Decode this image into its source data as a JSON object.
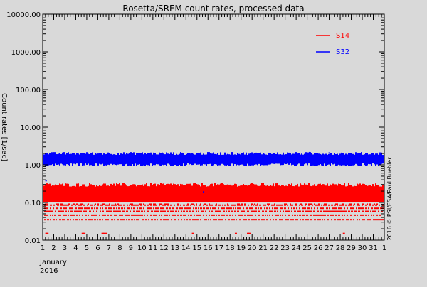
{
  "chart_data": {
    "type": "scatter",
    "title": "Rosetta/SREM count rates, processed data",
    "ylabel": "Count rates [1/sec]",
    "y_scale": "log",
    "ylim": [
      0.01,
      10000
    ],
    "y_ticks": [
      0.01,
      0.1,
      1.0,
      10.0,
      100.0,
      1000.0,
      10000.0
    ],
    "y_tick_labels": [
      "0.01",
      "0.10",
      "1.00",
      "10.00",
      "100.00",
      "1000.00",
      "10000.00"
    ],
    "xlim": [
      1,
      32
    ],
    "x_tick_labels": [
      "1",
      "2",
      "3",
      "4",
      "5",
      "6",
      "7",
      "8",
      "9",
      "10",
      "11",
      "12",
      "13",
      "14",
      "15",
      "16",
      "17",
      "18",
      "19",
      "20",
      "21",
      "22",
      "23",
      "24",
      "25",
      "26",
      "27",
      "28",
      "29",
      "30",
      "31",
      "1"
    ],
    "x_month_label": "January",
    "x_year_label": "2016",
    "grid": false,
    "legend_position": "top-right",
    "credit": "2016 © PSI/ESA/Paul Buehler",
    "colors": {
      "background": "#d9d9d9",
      "axes": "#000000",
      "S14": "#ff0000",
      "S32": "#0000ff"
    },
    "series": [
      {
        "name": "S32",
        "color": "#0000ff",
        "description_level": "dense band",
        "band_center": 1.4,
        "band_low": 1.0,
        "band_high": 2.0,
        "outliers": [
          {
            "x": 1.3,
            "y": 0.38
          },
          {
            "x": 15.6,
            "y": 0.19
          },
          {
            "x": 25.2,
            "y": 2.1
          },
          {
            "x": 27.0,
            "y": 2.05
          }
        ]
      },
      {
        "name": "S14",
        "color": "#ff0000",
        "band_center": 0.16,
        "band_low": 0.1,
        "band_high": 0.3,
        "discrete_levels": [
          0.085,
          0.07,
          0.058,
          0.046,
          0.035
        ],
        "sparse_level": 0.015,
        "sparse_points_x": [
          1.3,
          1.4,
          4.6,
          4.75,
          6.4,
          6.55,
          6.75,
          14.6,
          18.5,
          19.6,
          19.75,
          28.3
        ]
      }
    ]
  }
}
